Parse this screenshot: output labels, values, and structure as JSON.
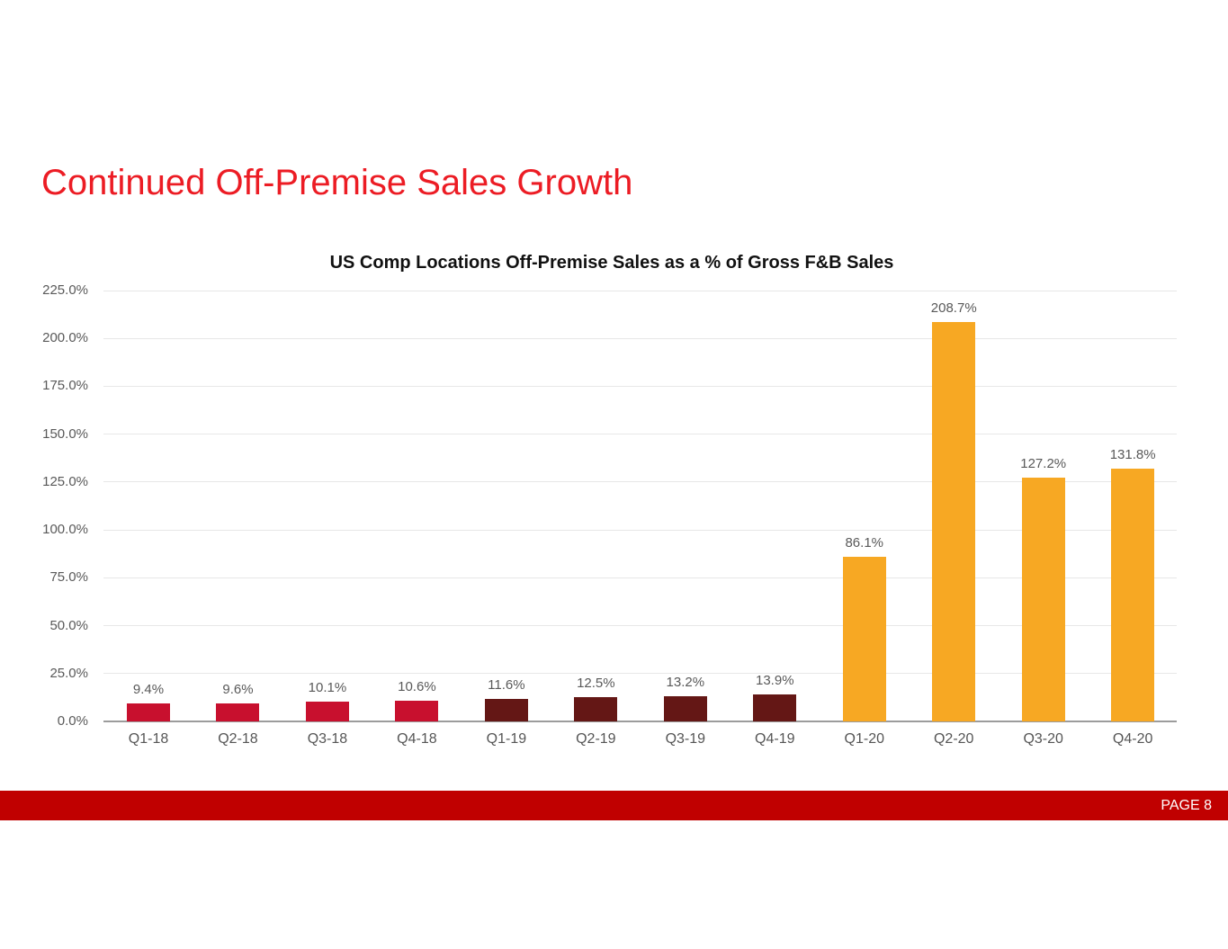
{
  "slide": {
    "title": "Continued Off-Premise Sales Growth",
    "title_color": "#EC1C24"
  },
  "chart_data": {
    "type": "bar",
    "title": "US Comp Locations Off-Premise Sales as a % of Gross F&B Sales",
    "categories": [
      "Q1-18",
      "Q2-18",
      "Q3-18",
      "Q4-18",
      "Q1-19",
      "Q2-19",
      "Q3-19",
      "Q4-19",
      "Q1-20",
      "Q2-20",
      "Q3-20",
      "Q4-20"
    ],
    "values": [
      9.4,
      9.6,
      10.1,
      10.6,
      11.6,
      12.5,
      13.2,
      13.9,
      86.1,
      208.7,
      127.2,
      131.8
    ],
    "labels": [
      "9.4%",
      "9.6%",
      "10.1%",
      "10.6%",
      "11.6%",
      "12.5%",
      "13.2%",
      "13.9%",
      "86.1%",
      "208.7%",
      "127.2%",
      "131.8%"
    ],
    "bar_colors": [
      "#C8102E",
      "#C8102E",
      "#C8102E",
      "#C8102E",
      "#641715",
      "#641715",
      "#641715",
      "#641715",
      "#F7A823",
      "#F7A823",
      "#F7A823",
      "#F7A823"
    ],
    "series_colors": {
      "2018": "#C8102E",
      "2019": "#641715",
      "2020": "#F7A823"
    },
    "xlabel": "",
    "ylabel": "",
    "ylim": [
      0,
      225
    ],
    "ytick_step": 25,
    "ytick_labels": [
      "0.0%",
      "25.0%",
      "50.0%",
      "75.0%",
      "100.0%",
      "125.0%",
      "150.0%",
      "175.0%",
      "200.0%",
      "225.0%"
    ],
    "grid": true,
    "legend": "none"
  },
  "footer": {
    "page_label": "PAGE 8",
    "bar_color": "#C00000"
  }
}
